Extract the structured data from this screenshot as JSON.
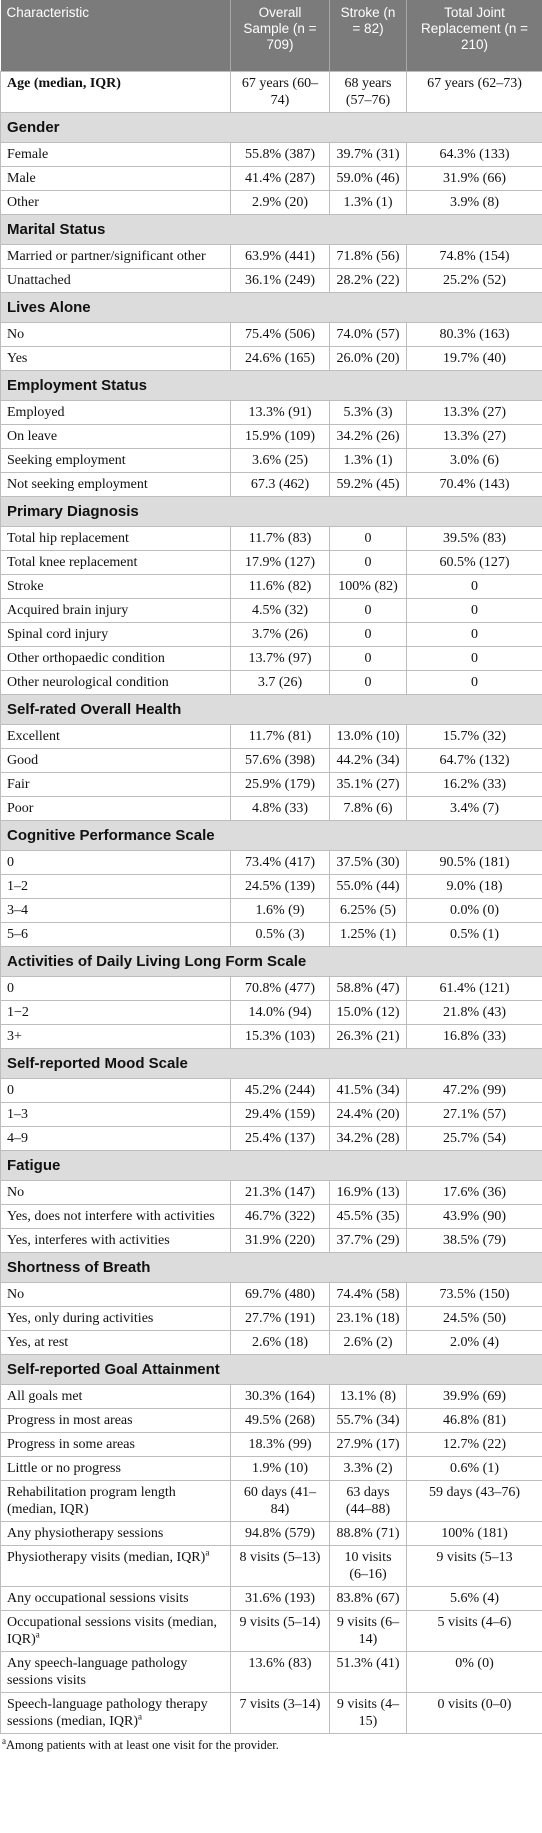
{
  "table": {
    "columns": [
      "Characteristic",
      "Overall Sample (n = 709)",
      "Stroke (n = 82)",
      "Total Joint Replacement (n = 210)"
    ],
    "groups": [
      {
        "rows": [
          {
            "bold": true,
            "cells": [
              "Age (median, IQR)",
              "67 years (60–74)",
              "68 years (57–76)",
              "67 years (62–73)"
            ]
          }
        ]
      },
      {
        "title": "Gender",
        "rows": [
          {
            "cells": [
              "Female",
              "55.8% (387)",
              "39.7% (31)",
              "64.3% (133)"
            ]
          },
          {
            "cells": [
              "Male",
              "41.4% (287)",
              "59.0% (46)",
              "31.9% (66)"
            ]
          },
          {
            "cells": [
              "Other",
              "2.9% (20)",
              "1.3% (1)",
              "3.9% (8)"
            ]
          }
        ]
      },
      {
        "title": "Marital Status",
        "rows": [
          {
            "cells": [
              "Married or partner/significant other",
              "63.9% (441)",
              "71.8% (56)",
              "74.8% (154)"
            ]
          },
          {
            "cells": [
              "Unattached",
              "36.1% (249)",
              "28.2% (22)",
              "25.2% (52)"
            ]
          }
        ]
      },
      {
        "title": "Lives Alone",
        "rows": [
          {
            "cells": [
              "No",
              "75.4% (506)",
              "74.0% (57)",
              "80.3% (163)"
            ]
          },
          {
            "cells": [
              "Yes",
              "24.6% (165)",
              "26.0% (20)",
              "19.7% (40)"
            ]
          }
        ]
      },
      {
        "title": "Employment Status",
        "rows": [
          {
            "cells": [
              "Employed",
              "13.3% (91)",
              "5.3% (3)",
              "13.3% (27)"
            ]
          },
          {
            "cells": [
              "On leave",
              "15.9% (109)",
              "34.2% (26)",
              "13.3% (27)"
            ]
          },
          {
            "cells": [
              "Seeking employment",
              "3.6% (25)",
              "1.3% (1)",
              "3.0% (6)"
            ]
          },
          {
            "cells": [
              "Not seeking employment",
              "67.3 (462)",
              "59.2% (45)",
              "70.4% (143)"
            ]
          }
        ]
      },
      {
        "title": "Primary Diagnosis",
        "rows": [
          {
            "cells": [
              "Total hip replacement",
              "11.7% (83)",
              "0",
              "39.5% (83)"
            ]
          },
          {
            "cells": [
              "Total knee replacement",
              "17.9% (127)",
              "0",
              "60.5% (127)"
            ]
          },
          {
            "cells": [
              "Stroke",
              "11.6% (82)",
              "100% (82)",
              "0"
            ]
          },
          {
            "cells": [
              "Acquired brain injury",
              "4.5% (32)",
              "0",
              "0"
            ]
          },
          {
            "cells": [
              "Spinal cord injury",
              "3.7% (26)",
              "0",
              "0"
            ]
          },
          {
            "cells": [
              "Other orthopaedic condition",
              "13.7% (97)",
              "0",
              "0"
            ]
          },
          {
            "cells": [
              "Other neurological condition",
              "3.7 (26)",
              "0",
              "0"
            ]
          }
        ]
      },
      {
        "title": "Self-rated Overall Health",
        "rows": [
          {
            "cells": [
              "Excellent",
              "11.7% (81)",
              "13.0% (10)",
              "15.7% (32)"
            ]
          },
          {
            "cells": [
              "Good",
              "57.6% (398)",
              "44.2% (34)",
              "64.7% (132)"
            ]
          },
          {
            "cells": [
              "Fair",
              "25.9% (179)",
              "35.1% (27)",
              "16.2% (33)"
            ]
          },
          {
            "cells": [
              "Poor",
              "4.8% (33)",
              "7.8% (6)",
              "3.4% (7)"
            ]
          }
        ]
      },
      {
        "title": "Cognitive Performance Scale",
        "rows": [
          {
            "cells": [
              "0",
              "73.4% (417)",
              "37.5% (30)",
              "90.5% (181)"
            ]
          },
          {
            "cells": [
              "1–2",
              "24.5% (139)",
              "55.0% (44)",
              "9.0% (18)"
            ]
          },
          {
            "cells": [
              "3–4",
              "1.6% (9)",
              "6.25% (5)",
              "0.0% (0)"
            ]
          },
          {
            "cells": [
              "5–6",
              "0.5% (3)",
              "1.25% (1)",
              "0.5% (1)"
            ]
          }
        ]
      },
      {
        "title": "Activities of Daily Living Long Form Scale",
        "rows": [
          {
            "cells": [
              "0",
              "70.8% (477)",
              "58.8% (47)",
              "61.4% (121)"
            ]
          },
          {
            "cells": [
              "1−2",
              "14.0% (94)",
              "15.0% (12)",
              "21.8% (43)"
            ]
          },
          {
            "cells": [
              "3+",
              "15.3% (103)",
              "26.3% (21)",
              "16.8% (33)"
            ]
          }
        ]
      },
      {
        "title": "Self-reported Mood Scale",
        "rows": [
          {
            "cells": [
              "0",
              "45.2% (244)",
              "41.5% (34)",
              "47.2% (99)"
            ]
          },
          {
            "cells": [
              "1–3",
              "29.4% (159)",
              "24.4% (20)",
              "27.1% (57)"
            ]
          },
          {
            "cells": [
              "4–9",
              "25.4% (137)",
              "34.2% (28)",
              "25.7% (54)"
            ]
          }
        ]
      },
      {
        "title": "Fatigue",
        "rows": [
          {
            "cells": [
              "No",
              "21.3% (147)",
              "16.9% (13)",
              "17.6% (36)"
            ]
          },
          {
            "cells": [
              "Yes, does not interfere with activities",
              "46.7% (322)",
              "45.5% (35)",
              "43.9% (90)"
            ]
          },
          {
            "cells": [
              "Yes, interferes with activities",
              "31.9% (220)",
              "37.7% (29)",
              "38.5% (79)"
            ]
          }
        ]
      },
      {
        "title": "Shortness of Breath",
        "rows": [
          {
            "cells": [
              "No",
              "69.7% (480)",
              "74.4% (58)",
              "73.5% (150)"
            ]
          },
          {
            "cells": [
              "Yes, only during activities",
              "27.7% (191)",
              "23.1% (18)",
              "24.5% (50)"
            ]
          },
          {
            "cells": [
              "Yes, at rest",
              "2.6% (18)",
              "2.6% (2)",
              "2.0% (4)"
            ]
          }
        ]
      },
      {
        "title": "Self-reported Goal Attainment",
        "rows": [
          {
            "cells": [
              "All goals met",
              "30.3% (164)",
              "13.1% (8)",
              "39.9% (69)"
            ]
          },
          {
            "cells": [
              "Progress in most areas",
              "49.5% (268)",
              "55.7% (34)",
              "46.8% (81)"
            ]
          },
          {
            "cells": [
              "Progress in some areas",
              "18.3% (99)",
              "27.9% (17)",
              "12.7% (22)"
            ]
          },
          {
            "cells": [
              "Little or no progress",
              "1.9% (10)",
              "3.3% (2)",
              "0.6% (1)"
            ]
          },
          {
            "cells": [
              "Rehabilitation program length (median, IQR)",
              "60 days (41–84)",
              "63 days (44–88)",
              "59 days (43–76)"
            ]
          },
          {
            "cells": [
              "Any physiotherapy sessions",
              "94.8% (579)",
              "88.8% (71)",
              "100% (181)"
            ]
          },
          {
            "note": "a",
            "cells": [
              "Physiotherapy visits (median, IQR)",
              "8 visits (5–13)",
              "10 visits (6–16)",
              "9 visits (5–13"
            ]
          },
          {
            "cells": [
              "Any occupational sessions visits",
              "31.6% (193)",
              "83.8% (67)",
              "5.6% (4)"
            ]
          },
          {
            "note": "a",
            "cells": [
              "Occupational sessions visits (median, IQR)",
              "9 visits (5–14)",
              "9 visits (6–14)",
              "5 visits (4–6)"
            ]
          },
          {
            "cells": [
              "Any speech-language pathology sessions visits",
              "13.6% (83)",
              "51.3% (41)",
              "0% (0)"
            ]
          },
          {
            "note": "a",
            "cells": [
              "Speech-language pathology therapy sessions (median, IQR)",
              "7 visits (3–14)",
              "9 visits (4–15)",
              "0 visits (0–0)"
            ]
          }
        ]
      }
    ],
    "footnote": {
      "mark": "a",
      "text": "Among patients with at least one visit for the provider."
    }
  }
}
